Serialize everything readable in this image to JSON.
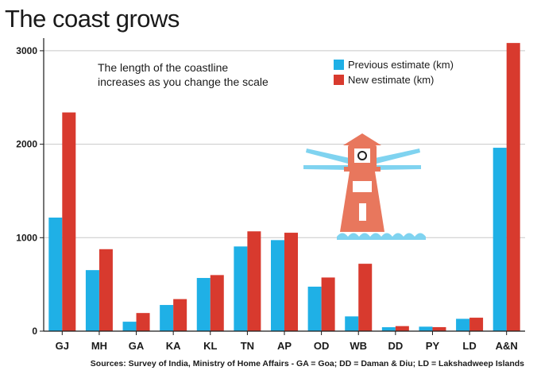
{
  "chart_data": {
    "type": "bar",
    "title": "The coast grows",
    "annotation": [
      "The length of the coastline",
      "increases as you change the scale"
    ],
    "categories": [
      "GJ",
      "MH",
      "GA",
      "KA",
      "KL",
      "TN",
      "AP",
      "OD",
      "WB",
      "DD",
      "PY",
      "LD",
      "A&N"
    ],
    "series": [
      {
        "name": "Previous estimate (km)",
        "color": "#1fb0e6",
        "values": [
          1215,
          653,
          101,
          280,
          569,
          906,
          974,
          476,
          158,
          42,
          48,
          132,
          1962
        ]
      },
      {
        "name": "New estimate (km)",
        "color": "#d83a2e",
        "values": [
          2340,
          877,
          194,
          343,
          600,
          1068,
          1053,
          574,
          721,
          54,
          43,
          144,
          3083
        ]
      }
    ],
    "yticks": [
      0,
      1000,
      2000,
      3000
    ],
    "ylim": [
      0,
      3100
    ],
    "grid": true,
    "legend_position": "top-right",
    "source": "Sources: Survey of India, Ministry of Home Affairs - GA = Goa; DD = Daman & Diu; LD = Lakshadweep Islands",
    "illustration": "lighthouse-icon"
  }
}
